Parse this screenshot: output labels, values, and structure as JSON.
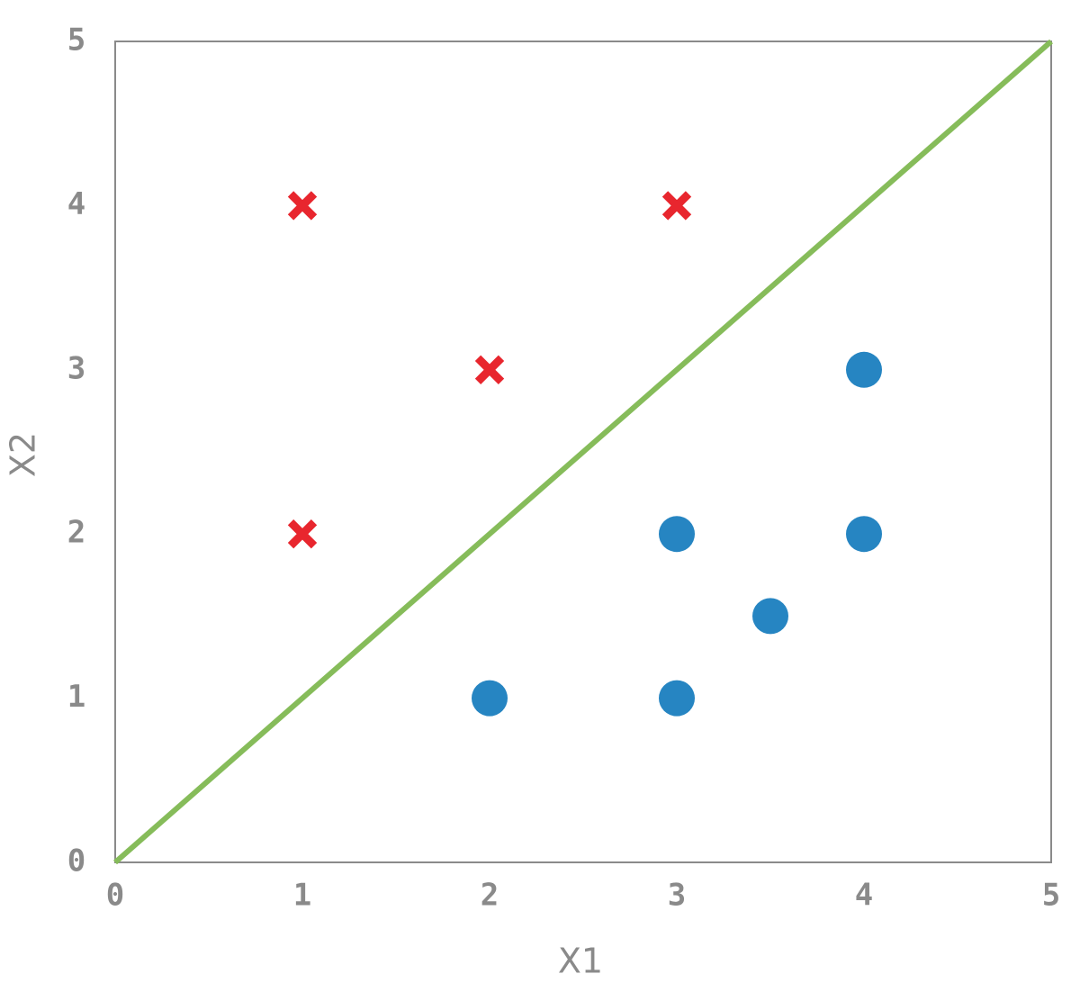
{
  "chart_data": {
    "type": "scatter",
    "x_label": "X1",
    "y_label": "X2",
    "xlim": [
      0,
      5
    ],
    "ylim": [
      0,
      5
    ],
    "xticks": [
      0,
      1,
      2,
      3,
      4,
      5
    ],
    "yticks": [
      0,
      1,
      2,
      3,
      4,
      5
    ],
    "grid": false,
    "series": [
      {
        "marker": "x",
        "color": "#e8262e",
        "x": [
          1,
          3,
          2,
          1
        ],
        "values": [
          4,
          4,
          3,
          2
        ]
      },
      {
        "marker": "circle",
        "color": "#2685c2",
        "x": [
          4,
          3,
          4,
          3.5,
          2,
          3
        ],
        "values": [
          3,
          2,
          2,
          1.5,
          1,
          1
        ]
      },
      {
        "marker": "line",
        "color": "#86bc5a",
        "x": [
          0,
          5
        ],
        "values": [
          0,
          5
        ]
      }
    ]
  }
}
